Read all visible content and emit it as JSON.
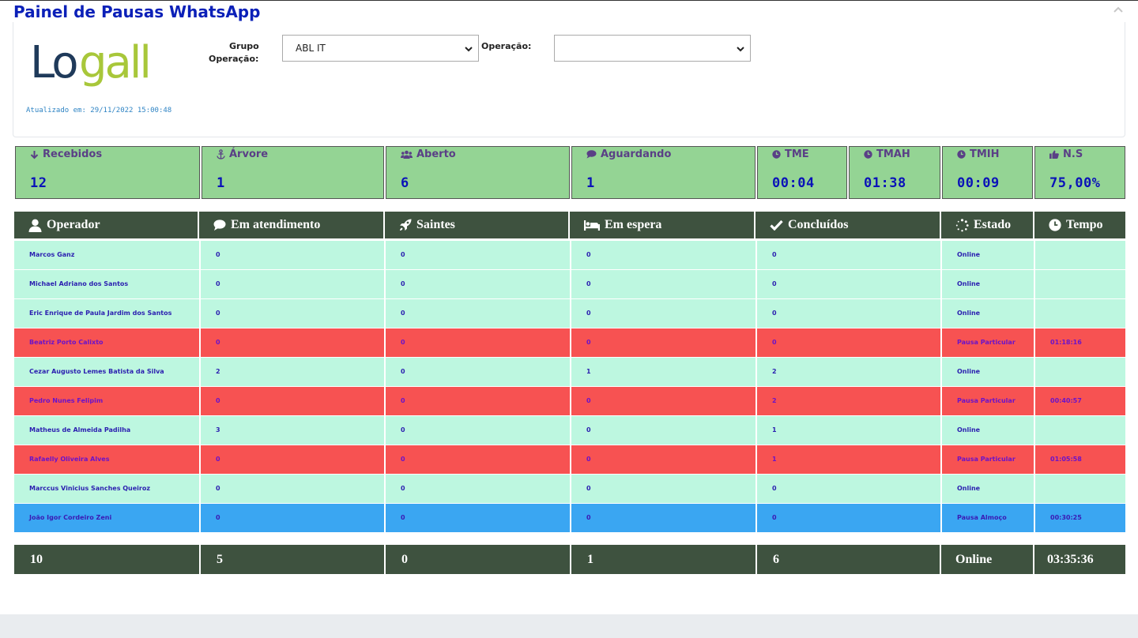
{
  "page": {
    "title": "Painel de Pausas WhatsApp"
  },
  "header": {
    "logo_text": "Logall",
    "updated": "Atualizado em: 29/11/2022 15:00:48",
    "grupo_label_1": "Grupo",
    "grupo_label_2": "Operação:",
    "grupo_value": "ABL IT",
    "operacao_label": "Operação:",
    "operacao_value": ""
  },
  "stats": [
    {
      "label": "Recebidos",
      "value": "12",
      "icon": "arrow-down-icon"
    },
    {
      "label": "Árvore",
      "value": "1",
      "icon": "anchor-icon"
    },
    {
      "label": "Aberto",
      "value": "6",
      "icon": "users-icon"
    },
    {
      "label": "Aguardando",
      "value": "1",
      "icon": "comment-icon"
    },
    {
      "label": "TME",
      "value": "00:04",
      "icon": "clock-icon"
    },
    {
      "label": "TMAH",
      "value": "01:38",
      "icon": "clock-icon"
    },
    {
      "label": "TMIH",
      "value": "00:09",
      "icon": "clock-icon"
    },
    {
      "label": "N.S",
      "value": "75,00%",
      "icon": "thumbs-up-icon"
    }
  ],
  "table": {
    "headers": [
      {
        "label": "Operador",
        "icon": "user-icon"
      },
      {
        "label": "Em atendimento",
        "icon": "comment-icon"
      },
      {
        "label": "Saintes",
        "icon": "rocket-icon"
      },
      {
        "label": "Em espera",
        "icon": "bed-icon"
      },
      {
        "label": "Concluídos",
        "icon": "check-icon"
      },
      {
        "label": "Estado",
        "icon": "spinner-icon"
      },
      {
        "label": "Tempo",
        "icon": "clock-icon"
      }
    ],
    "rows": [
      {
        "status": "online",
        "cells": [
          "Marcos Ganz",
          "0",
          "0",
          "0",
          "0",
          "Online",
          ""
        ]
      },
      {
        "status": "online",
        "cells": [
          "Michael Adriano dos Santos",
          "0",
          "0",
          "0",
          "0",
          "Online",
          ""
        ]
      },
      {
        "status": "online",
        "cells": [
          "Eric Enrique de Paula Jardim dos Santos",
          "0",
          "0",
          "0",
          "0",
          "Online",
          ""
        ]
      },
      {
        "status": "pausa",
        "cells": [
          "Beatriz Porto Calixto",
          "0",
          "0",
          "0",
          "0",
          "Pausa Particular",
          "01:18:16"
        ]
      },
      {
        "status": "online",
        "cells": [
          "Cezar Augusto Lemes Batista da Silva",
          "2",
          "0",
          "1",
          "2",
          "Online",
          ""
        ]
      },
      {
        "status": "pausa",
        "cells": [
          "Pedro Nunes Felipim",
          "0",
          "0",
          "0",
          "2",
          "Pausa Particular",
          "00:40:57"
        ]
      },
      {
        "status": "online",
        "cells": [
          "Matheus de Almeida Padilha",
          "3",
          "0",
          "0",
          "1",
          "Online",
          ""
        ]
      },
      {
        "status": "pausa",
        "cells": [
          "Rafaelly Oliveira Alves",
          "0",
          "0",
          "0",
          "1",
          "Pausa Particular",
          "01:05:58"
        ]
      },
      {
        "status": "online",
        "cells": [
          "Marccus Vinicius Sanches Queiroz",
          "0",
          "0",
          "0",
          "0",
          "Online",
          ""
        ]
      },
      {
        "status": "almoco",
        "cells": [
          "João Igor Cordeiro Zeni",
          "0",
          "0",
          "0",
          "0",
          "Pausa Almoço",
          "00:30:25"
        ]
      }
    ],
    "totals": [
      "10",
      "5",
      "0",
      "1",
      "6",
      "Online",
      "03:35:36"
    ]
  },
  "colors": {
    "title": "#0b20b8",
    "stat_bg": "#94d494",
    "header_bg": "#3e523f",
    "row_online": "#bdf7e0",
    "row_pausa": "#f75252",
    "row_almoco": "#3aa6f2"
  }
}
